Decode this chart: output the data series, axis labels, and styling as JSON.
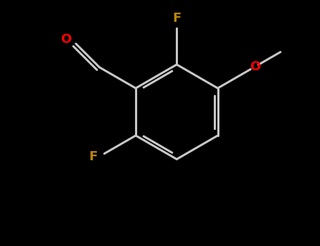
{
  "background_color": "#000000",
  "bond_color": "#c8c8c8",
  "bond_width": 2.2,
  "F_top_color": "#b8860b",
  "F_bot_color": "#b8860b",
  "O_methoxy_color": "#ff0000",
  "O_cho_color": "#ff0000",
  "figsize": [
    4.55,
    3.5
  ],
  "dpi": 100,
  "xlim": [
    -2.8,
    2.8
  ],
  "ylim": [
    -2.2,
    2.2
  ]
}
